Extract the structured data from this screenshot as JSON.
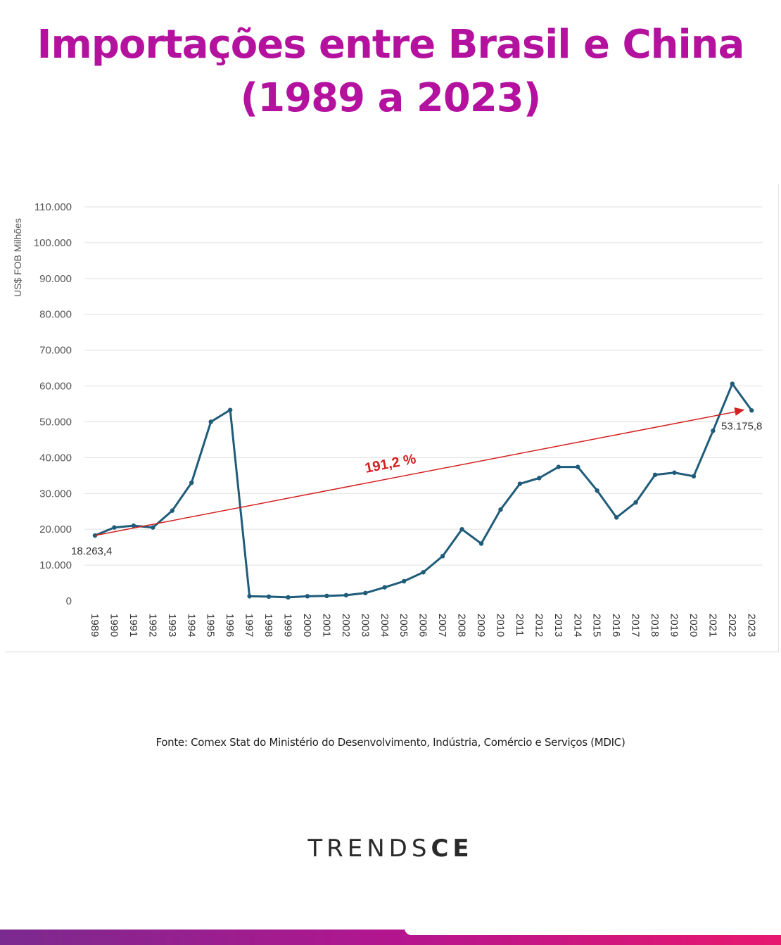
{
  "title": {
    "line1": "Importações entre Brasil e China",
    "line2": "(1989 a 2023)"
  },
  "colors": {
    "title": "#b3119e",
    "series": "#1f5c7a",
    "trend": "#d42020",
    "grid": "#e0e0e0"
  },
  "chart_data": {
    "type": "line",
    "ylabel": "US$ FOB Milhões",
    "ylim": [
      0,
      110000
    ],
    "yticks": [
      0,
      10000,
      20000,
      30000,
      40000,
      50000,
      60000,
      70000,
      80000,
      90000,
      100000,
      110000
    ],
    "ytick_labels": [
      "0",
      "10.000",
      "20.000",
      "30.000",
      "40.000",
      "50.000",
      "60.000",
      "70.000",
      "80.000",
      "90.000",
      "100.000",
      "110.000"
    ],
    "grid": true,
    "categories": [
      "1989",
      "1990",
      "1991",
      "1992",
      "1993",
      "1994",
      "1995",
      "1996",
      "1997",
      "1998",
      "1999",
      "2000",
      "2001",
      "2002",
      "2003",
      "2004",
      "2005",
      "2006",
      "2007",
      "2008",
      "2009",
      "2010",
      "2011",
      "2012",
      "2013",
      "2014",
      "2015",
      "2016",
      "2017",
      "2018",
      "2019",
      "2020",
      "2021",
      "2022",
      "2023"
    ],
    "series": [
      {
        "values": [
          18263.4,
          20500,
          21000,
          20500,
          25200,
          33000,
          50000,
          53300,
          1300,
          1200,
          1000,
          1300,
          1400,
          1600,
          2200,
          3800,
          5500,
          8000,
          12500,
          20000,
          16000,
          25500,
          32700,
          34300,
          37400,
          37400,
          30800,
          23300,
          27500,
          35200,
          35800,
          34800,
          47500,
          60600,
          53175.8
        ]
      }
    ],
    "annotations": {
      "start_label": "18.263,4",
      "end_label": "53.175,8",
      "trend_label": "191,2 %",
      "trend_from": {
        "x": "1989",
        "y": 18263.4
      },
      "trend_to": {
        "x": "2023",
        "y": 53175.8
      }
    }
  },
  "source": "Fonte: Comex Stat do Ministério do Desenvolvimento, Indústria, Comércio e Serviços (MDIC)",
  "logo": {
    "part1": "TRENDS",
    "part2": "CE"
  }
}
